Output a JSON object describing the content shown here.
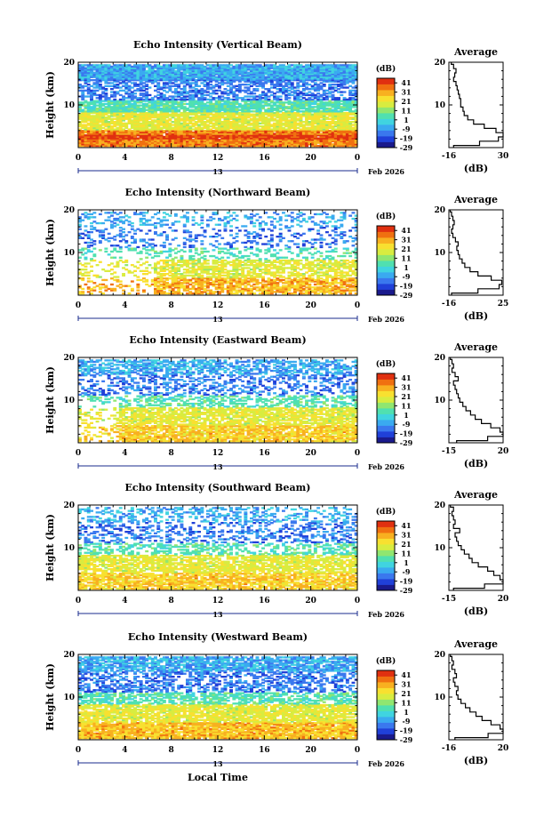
{
  "colorbar": {
    "unit": "(dB)",
    "ticks": [
      "41",
      "31",
      "21",
      "11",
      "1",
      "-9",
      "-19",
      "-29"
    ],
    "tick_values": [
      41,
      31,
      21,
      11,
      1,
      -9,
      -19,
      -29
    ],
    "range": [
      -29,
      46
    ],
    "colors": [
      "#1a1a8c",
      "#2040d8",
      "#3a78ee",
      "#3aaaf0",
      "#40d4e0",
      "#50e0b0",
      "#90e670",
      "#d8ec40",
      "#f8e030",
      "#f8b020",
      "#f07010",
      "#e03010"
    ]
  },
  "x_axis_label": "Local Time",
  "date_label": "Feb 2026",
  "day_marker": "13",
  "axis_line_color": "#1a2b8c",
  "chart_data": [
    {
      "type": "heatmap",
      "title": "Echo Intensity (Vertical Beam)",
      "ylabel": "Height (km)",
      "xlabel": "Local Time",
      "xlim": [
        0,
        24
      ],
      "ylim": [
        0,
        20
      ],
      "x_ticks": [
        "0",
        "4",
        "8",
        "12",
        "16",
        "20",
        "0"
      ],
      "y_ticks": [
        "20",
        "10"
      ],
      "colorbar_label": "(dB)",
      "profile": {
        "title": "Average",
        "xlabel": "(dB)",
        "x_ticks": [
          "-16",
          "30"
        ],
        "xlim": [
          -16,
          30
        ],
        "y_ticks": [
          "20",
          "10"
        ],
        "heights": [
          0,
          1,
          2,
          3,
          4,
          5,
          6,
          7,
          8,
          9,
          10,
          11,
          12,
          13,
          14,
          15,
          16,
          17,
          18,
          19,
          20
        ],
        "values": [
          -12,
          10,
          26,
          30,
          24,
          14,
          5,
          0,
          -3,
          -4,
          -6,
          -6,
          -7,
          -8,
          -9,
          -10,
          -12,
          -11,
          -10,
          -12,
          -14
        ]
      }
    },
    {
      "type": "heatmap",
      "title": "Echo Intensity (Northward Beam)",
      "ylabel": "Height (km)",
      "xlabel": "Local Time",
      "xlim": [
        0,
        24
      ],
      "ylim": [
        0,
        20
      ],
      "x_ticks": [
        "0",
        "4",
        "8",
        "12",
        "16",
        "20",
        "0"
      ],
      "y_ticks": [
        "20",
        "10"
      ],
      "colorbar_label": "(dB)",
      "profile": {
        "title": "Average",
        "xlabel": "(dB)",
        "x_ticks": [
          "-16",
          "25"
        ],
        "xlim": [
          -16,
          25
        ],
        "y_ticks": [
          "20",
          "10"
        ],
        "heights": [
          0,
          1,
          2,
          3,
          4,
          5,
          6,
          7,
          8,
          9,
          10,
          11,
          12,
          13,
          14,
          15,
          16,
          17,
          18,
          19,
          20
        ],
        "values": [
          -14,
          6,
          22,
          24,
          16,
          6,
          0,
          -4,
          -6,
          -8,
          -9,
          -10,
          -9,
          -11,
          -13,
          -14,
          -13,
          -12,
          -13,
          -14,
          -15
        ]
      }
    },
    {
      "type": "heatmap",
      "title": "Echo Intensity (Eastward Beam)",
      "ylabel": "Height (km)",
      "xlabel": "Local Time",
      "xlim": [
        0,
        24
      ],
      "ylim": [
        0,
        20
      ],
      "x_ticks": [
        "0",
        "4",
        "8",
        "12",
        "16",
        "20",
        "0"
      ],
      "y_ticks": [
        "20",
        "10"
      ],
      "colorbar_label": "(dB)",
      "profile": {
        "title": "Average",
        "xlabel": "(dB)",
        "x_ticks": [
          "-15",
          "20"
        ],
        "xlim": [
          -15,
          20
        ],
        "y_ticks": [
          "20",
          "10"
        ],
        "heights": [
          0,
          1,
          2,
          3,
          4,
          5,
          6,
          7,
          8,
          9,
          10,
          11,
          12,
          13,
          14,
          15,
          16,
          17,
          18,
          19,
          20
        ],
        "values": [
          -10,
          10,
          20,
          18,
          12,
          6,
          2,
          -1,
          -4,
          -6,
          -8,
          -9,
          -10,
          -11,
          -12,
          -9,
          -11,
          -13,
          -12,
          -13,
          -14
        ]
      }
    },
    {
      "type": "heatmap",
      "title": "Echo Intensity (Southward Beam)",
      "ylabel": "Height (km)",
      "xlabel": "Local Time",
      "xlim": [
        0,
        24
      ],
      "ylim": [
        0,
        20
      ],
      "x_ticks": [
        "0",
        "4",
        "8",
        "12",
        "16",
        "20",
        "0"
      ],
      "y_ticks": [
        "20",
        "10"
      ],
      "colorbar_label": "(dB)",
      "profile": {
        "title": "Average",
        "xlabel": "(dB)",
        "x_ticks": [
          "-15",
          "20"
        ],
        "xlim": [
          -15,
          20
        ],
        "y_ticks": [
          "20",
          "10"
        ],
        "heights": [
          0,
          1,
          2,
          3,
          4,
          5,
          6,
          7,
          8,
          9,
          10,
          11,
          12,
          13,
          14,
          15,
          16,
          17,
          18,
          19,
          20
        ],
        "values": [
          -12,
          8,
          20,
          18,
          14,
          10,
          4,
          0,
          -2,
          -5,
          -7,
          -9,
          -10,
          -11,
          -8,
          -12,
          -11,
          -12,
          -13,
          -12,
          -14
        ]
      }
    },
    {
      "type": "heatmap",
      "title": "Echo Intensity (Westward Beam)",
      "ylabel": "Height (km)",
      "xlabel": "Local Time",
      "xlim": [
        0,
        24
      ],
      "ylim": [
        0,
        20
      ],
      "x_ticks": [
        "0",
        "4",
        "8",
        "12",
        "16",
        "20",
        "0"
      ],
      "y_ticks": [
        "20",
        "10"
      ],
      "colorbar_label": "(dB)",
      "profile": {
        "title": "Average",
        "xlabel": "(dB)",
        "x_ticks": [
          "-16",
          "20"
        ],
        "xlim": [
          -16,
          20
        ],
        "y_ticks": [
          "20",
          "10"
        ],
        "heights": [
          0,
          1,
          2,
          3,
          4,
          5,
          6,
          7,
          8,
          9,
          10,
          11,
          12,
          13,
          14,
          15,
          16,
          17,
          18,
          19,
          20
        ],
        "values": [
          -12,
          10,
          20,
          18,
          12,
          6,
          2,
          -2,
          -5,
          -8,
          -10,
          -11,
          -10,
          -12,
          -13,
          -11,
          -12,
          -14,
          -13,
          -14,
          -15
        ]
      }
    }
  ]
}
